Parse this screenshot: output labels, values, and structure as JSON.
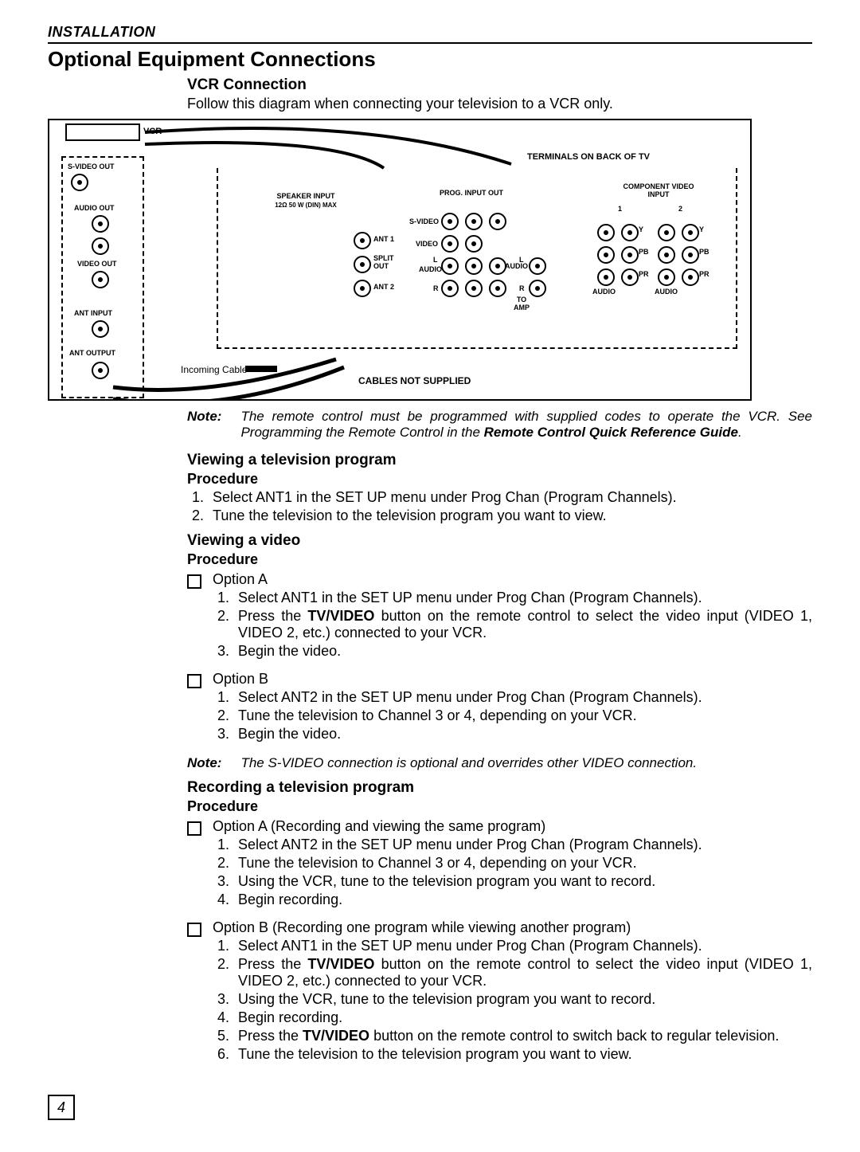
{
  "header": "INSTALLATION",
  "title": "Optional Equipment Connections",
  "vcr": {
    "heading": "VCR Connection",
    "intro": "Follow this diagram when connecting your television to a VCR only."
  },
  "diagram": {
    "vcr_label": "VCR",
    "svideo_out": "S-VIDEO OUT",
    "audio_out": "AUDIO OUT",
    "video_out": "VIDEO OUT",
    "ant_input": "ANT INPUT",
    "ant_output": "ANT OUTPUT",
    "terminals": "TERMINALS ON BACK OF TV",
    "speaker_input": "SPEAKER  INPUT",
    "speaker_sub": "12Ω    50 W (DIN) MAX",
    "prog_out": "PROG.   INPUT OUT",
    "component": "COMPONENT VIDEO INPUT",
    "svideo": "S-VIDEO",
    "video": "VIDEO",
    "audio": "AUDIO",
    "ant1": "ANT 1",
    "split_out": "SPLIT OUT",
    "ant2": "ANT 2",
    "to_amp": "TO AMP",
    "incoming": "Incoming Cable",
    "not_supplied": "CABLES NOT SUPPLIED",
    "L": "L",
    "R": "R",
    "Y": "Y",
    "PB": "PB",
    "PR": "PR",
    "AUDIO_sm": "AUDIO",
    "one": "1",
    "two": "2"
  },
  "note1": {
    "label": "Note:",
    "text_a": "The remote control must be programmed with supplied codes to operate the VCR. See Programming the Remote Control in the ",
    "text_b": "Remote Control Quick Reference Guide",
    "text_c": "."
  },
  "view_tv": {
    "h": "Viewing a television program",
    "p": "Procedure",
    "steps": [
      "Select ANT1 in the SET UP menu under Prog Chan (Program Channels).",
      "Tune the television to the television program you want to view."
    ]
  },
  "view_video": {
    "h": "Viewing a video",
    "p": "Procedure",
    "optA_label": "Option A",
    "optA_steps": [
      "Select ANT1 in the SET UP menu under Prog Chan (Program Channels).",
      {
        "pre": "Press the ",
        "bold": "TV/VIDEO",
        "post": " button on the remote control to select the video input (VIDEO 1, VIDEO 2, etc.) connected to your VCR."
      },
      "Begin the video."
    ],
    "optB_label": "Option B",
    "optB_steps": [
      "Select ANT2 in the SET UP menu under Prog Chan (Program Channels).",
      "Tune the television to Channel 3 or 4, depending on your VCR.",
      "Begin the video."
    ]
  },
  "note2": {
    "label": "Note:",
    "text": "The S-VIDEO connection is optional and overrides other VIDEO connection."
  },
  "record": {
    "h": "Recording a television program",
    "p": "Procedure",
    "optA_label": "Option A (Recording and viewing the same program)",
    "optA_steps": [
      "Select ANT2 in the SET UP menu under Prog Chan (Program Channels).",
      "Tune the television to Channel 3 or 4, depending on your VCR.",
      "Using the VCR, tune to the television program you want to record.",
      "Begin recording."
    ],
    "optB_label": "Option B (Recording one program while viewing another program)",
    "optB_steps": [
      "Select ANT1 in the SET UP menu under Prog Chan (Program Channels).",
      {
        "pre": "Press the ",
        "bold": "TV/VIDEO",
        "post": " button on the remote control to select the video input (VIDEO 1, VIDEO 2, etc.) connected to your VCR."
      },
      "Using the VCR, tune to the television program you want to record.",
      "Begin recording.",
      {
        "pre": "Press the ",
        "bold": "TV/VIDEO",
        "post": " button on the remote control to switch back to regular television."
      },
      "Tune the television to the television program you want to view."
    ]
  },
  "page_number": "4"
}
